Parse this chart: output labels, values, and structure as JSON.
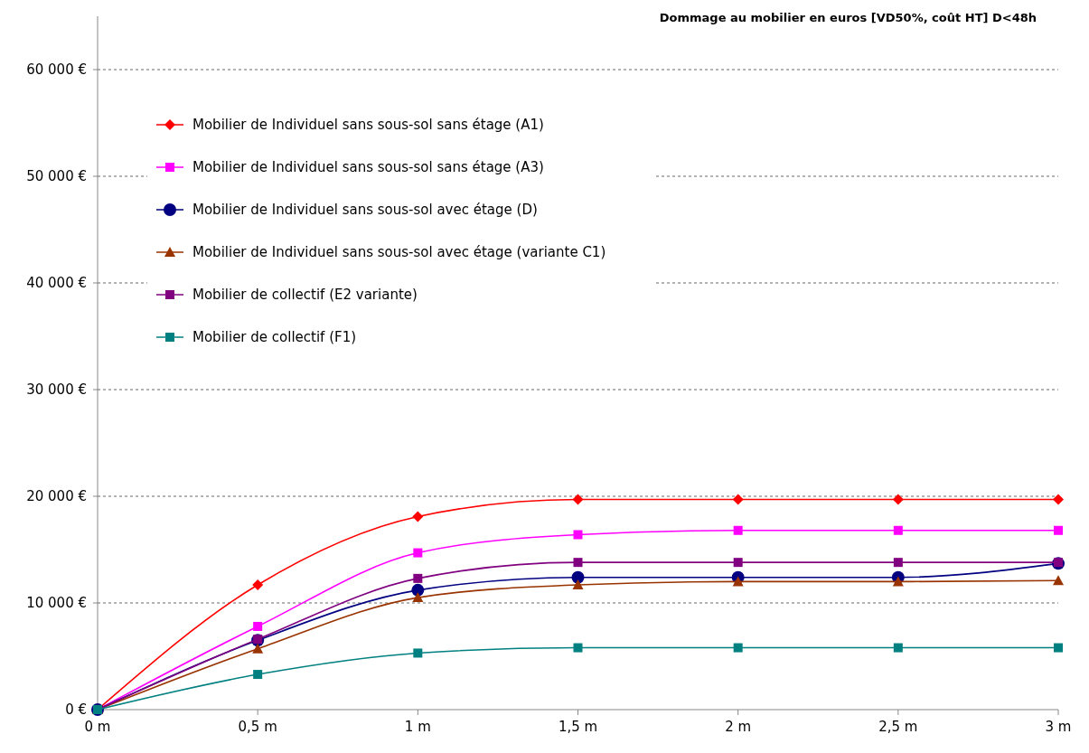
{
  "chart_data": {
    "type": "line",
    "title": "Dommage au mobilier en euros [VD50%, coût HT] D<48h",
    "x": [
      0,
      0.5,
      1,
      1.5,
      2,
      2.5,
      3
    ],
    "xlim": [
      0,
      3
    ],
    "xticks": [
      {
        "value": 0,
        "label": "0 m"
      },
      {
        "value": 0.5,
        "label": "0,5 m"
      },
      {
        "value": 1,
        "label": "1 m"
      },
      {
        "value": 1.5,
        "label": "1,5 m"
      },
      {
        "value": 2,
        "label": "2 m"
      },
      {
        "value": 2.5,
        "label": "2,5 m"
      },
      {
        "value": 3,
        "label": "3 m"
      }
    ],
    "ylim": [
      0,
      65000
    ],
    "yticks": [
      {
        "value": 0,
        "label": "0 €"
      },
      {
        "value": 10000,
        "label": "10 000 €"
      },
      {
        "value": 20000,
        "label": "20 000 €"
      },
      {
        "value": 30000,
        "label": "30 000 €"
      },
      {
        "value": 40000,
        "label": "40 000 €"
      },
      {
        "value": 50000,
        "label": "50 000 €"
      },
      {
        "value": 60000,
        "label": "60 000 €"
      }
    ],
    "grid": "y",
    "legend": "top left",
    "line_style": "solid",
    "series": [
      {
        "name": "Mobilier de Individuel sans sous-sol sans étage (A1)",
        "color": "#ff0000",
        "marker": "diamond",
        "values": [
          0,
          11700,
          18100,
          19700,
          19700,
          19700,
          19700
        ]
      },
      {
        "name": "Mobilier de Individuel sans sous-sol sans étage (A3)",
        "color": "#ff00ff",
        "marker": "square",
        "values": [
          0,
          7800,
          14700,
          16400,
          16800,
          16800,
          16800
        ]
      },
      {
        "name": "Mobilier de Individuel sans sous-sol avec étage (D)",
        "color": "#000080",
        "marker": "circle",
        "values": [
          0,
          6500,
          11200,
          12400,
          12400,
          12400,
          13700
        ]
      },
      {
        "name": "Mobilier de Individuel sans sous-sol avec étage (variante C1)",
        "color": "#993300",
        "marker": "triangle",
        "values": [
          0,
          5700,
          10500,
          11700,
          12000,
          12000,
          12100
        ]
      },
      {
        "name": "Mobilier de collectif (E2 variante)",
        "color": "#800080",
        "marker": "square",
        "values": [
          0,
          6600,
          12300,
          13800,
          13800,
          13800,
          13800
        ]
      },
      {
        "name": "Mobilier de collectif (F1)",
        "color": "#008080",
        "marker": "square",
        "values": [
          0,
          3300,
          5300,
          5800,
          5800,
          5800,
          5800
        ]
      }
    ]
  }
}
